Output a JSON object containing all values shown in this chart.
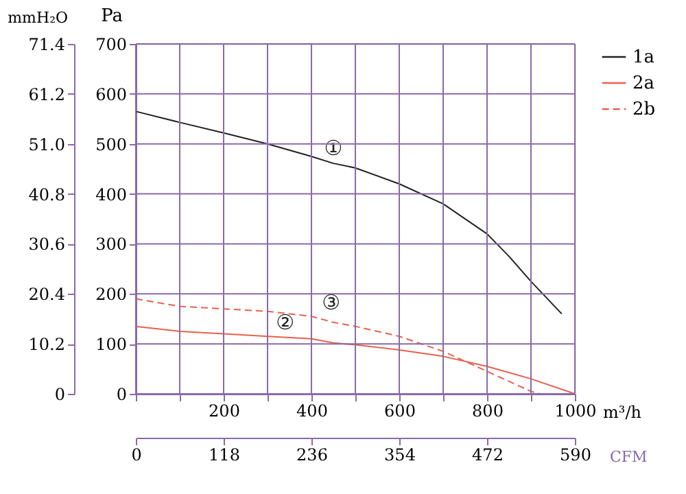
{
  "chart_data": {
    "type": "line",
    "ylabel": "Pa",
    "y2label": "mmH₂O",
    "xlabel": "m³/h",
    "x2label": "CFM",
    "xlim": [
      0,
      1000
    ],
    "xticks": [
      {
        "value": 0,
        "label": null
      },
      {
        "value": 100,
        "label": null
      },
      200,
      {
        "value": 300,
        "label": null
      },
      400,
      {
        "value": 500,
        "label": null
      },
      600,
      {
        "value": 700,
        "label": null
      },
      800,
      {
        "value": 900,
        "label": null
      },
      {
        "value": 1000,
        "label": "1000"
      }
    ],
    "ylim": [
      0,
      700
    ],
    "yticks": [
      0,
      100,
      200,
      300,
      400,
      500,
      600,
      700
    ],
    "y2lim": [
      0,
      71.4
    ],
    "y2ticks": [
      {
        "value": 0,
        "label": "0"
      },
      10.2,
      20.4,
      30.6,
      40.8,
      {
        "value": 51,
        "label": "51.0"
      },
      61.2,
      71.4
    ],
    "x2lim": [
      0,
      590
    ],
    "x2ticks": [
      0,
      118,
      236,
      354,
      472,
      590
    ],
    "grid": true,
    "legend": "right",
    "marker": "none",
    "series": [
      {
        "name": "1a",
        "color": "#222222",
        "line_style": "solid",
        "x": [
          0,
          100,
          200,
          300,
          400,
          450,
          500,
          600,
          700,
          800,
          850,
          900,
          970
        ],
        "values": [
          565,
          543,
          522,
          500,
          475,
          461,
          452,
          420,
          380,
          320,
          275,
          225,
          160
        ]
      },
      {
        "name": "2a",
        "color": "#e8604c",
        "line_style": "solid",
        "x": [
          0,
          100,
          200,
          300,
          400,
          450,
          500,
          600,
          700,
          800,
          900,
          1000
        ],
        "values": [
          135,
          125,
          120,
          115,
          110,
          102,
          98,
          88,
          75,
          55,
          30,
          0
        ]
      },
      {
        "name": "2b",
        "color": "#e8604c",
        "line_style": "dashed",
        "x": [
          0,
          100,
          200,
          300,
          400,
          450,
          500,
          600,
          700,
          800,
          850,
          900,
          920
        ],
        "values": [
          190,
          175,
          170,
          165,
          155,
          143,
          135,
          115,
          85,
          45,
          25,
          5,
          0
        ]
      }
    ],
    "annotations": [
      {
        "text": "①",
        "x": 450,
        "y": 461
      },
      {
        "text": "②",
        "x": 340,
        "y": 113
      },
      {
        "text": "③",
        "x": 445,
        "y": 152
      }
    ]
  }
}
